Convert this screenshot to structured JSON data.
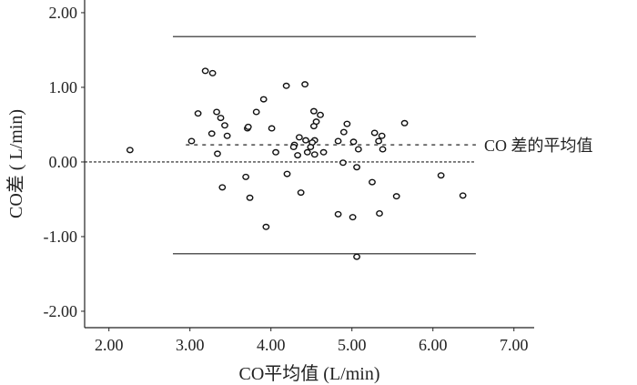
{
  "chart_data": {
    "type": "scatter",
    "title": "",
    "xlabel": "CO平均值 (L/min)",
    "ylabel": "CO差 ( L/min)",
    "xlim": [
      1.7,
      7.25
    ],
    "ylim": [
      -2.22,
      2.17
    ],
    "x_ticks": [
      2,
      3,
      4,
      5,
      6,
      7
    ],
    "x_tick_labels": [
      "2.00",
      "3.00",
      "4.00",
      "5.00",
      "6.00",
      "7.00"
    ],
    "y_ticks": [
      2,
      1,
      0,
      -1,
      -2
    ],
    "y_tick_labels": [
      "2.00",
      "1.00",
      "0.00",
      "-1.00",
      "-2.00"
    ],
    "grid": false,
    "reference_lines": [
      {
        "name": "upper-limit",
        "y": 1.68,
        "x_range": [
          2.79,
          6.53
        ],
        "style": "solid"
      },
      {
        "name": "mean-difference",
        "y": 0.23,
        "x_range": [
          2.95,
          6.53
        ],
        "style": "dashed",
        "label": "CO 差的平均值"
      },
      {
        "name": "zero",
        "y": 0.0,
        "x_range": [
          1.7,
          6.53
        ],
        "style": "dotted"
      },
      {
        "name": "lower-limit",
        "y": -1.23,
        "x_range": [
          2.79,
          6.53
        ],
        "style": "solid"
      }
    ],
    "points": [
      [
        2.26,
        0.16
      ],
      [
        3.19,
        1.22
      ],
      [
        3.28,
        1.19
      ],
      [
        4.19,
        1.02
      ],
      [
        4.42,
        1.04
      ],
      [
        3.91,
        0.84
      ],
      [
        3.1,
        0.65
      ],
      [
        3.33,
        0.67
      ],
      [
        3.38,
        0.59
      ],
      [
        3.43,
        0.49
      ],
      [
        3.82,
        0.67
      ],
      [
        3.71,
        0.45
      ],
      [
        3.72,
        0.47
      ],
      [
        4.01,
        0.45
      ],
      [
        3.27,
        0.38
      ],
      [
        3.46,
        0.35
      ],
      [
        3.02,
        0.28
      ],
      [
        3.34,
        0.11
      ],
      [
        4.06,
        0.13
      ],
      [
        3.69,
        -0.2
      ],
      [
        4.2,
        -0.16
      ],
      [
        3.4,
        -0.34
      ],
      [
        3.74,
        -0.48
      ],
      [
        4.37,
        -0.41
      ],
      [
        3.94,
        -0.87
      ],
      [
        4.53,
        0.68
      ],
      [
        4.61,
        0.63
      ],
      [
        4.56,
        0.54
      ],
      [
        4.53,
        0.48
      ],
      [
        4.35,
        0.33
      ],
      [
        4.43,
        0.29
      ],
      [
        4.54,
        0.29
      ],
      [
        4.51,
        0.26
      ],
      [
        4.49,
        0.2
      ],
      [
        4.29,
        0.23
      ],
      [
        4.28,
        0.2
      ],
      [
        4.33,
        0.09
      ],
      [
        4.45,
        0.13
      ],
      [
        4.54,
        0.1
      ],
      [
        4.65,
        0.13
      ],
      [
        4.94,
        0.51
      ],
      [
        4.9,
        0.4
      ],
      [
        4.83,
        0.28
      ],
      [
        5.02,
        0.27
      ],
      [
        5.08,
        0.17
      ],
      [
        5.28,
        0.39
      ],
      [
        5.37,
        0.35
      ],
      [
        5.33,
        0.28
      ],
      [
        5.38,
        0.17
      ],
      [
        5.65,
        0.52
      ],
      [
        4.89,
        -0.01
      ],
      [
        5.06,
        -0.07
      ],
      [
        5.25,
        -0.27
      ],
      [
        6.1,
        -0.18
      ],
      [
        5.55,
        -0.46
      ],
      [
        6.37,
        -0.45
      ],
      [
        4.83,
        -0.7
      ],
      [
        5.01,
        -0.74
      ],
      [
        5.34,
        -0.69
      ],
      [
        5.06,
        -1.27
      ]
    ]
  }
}
